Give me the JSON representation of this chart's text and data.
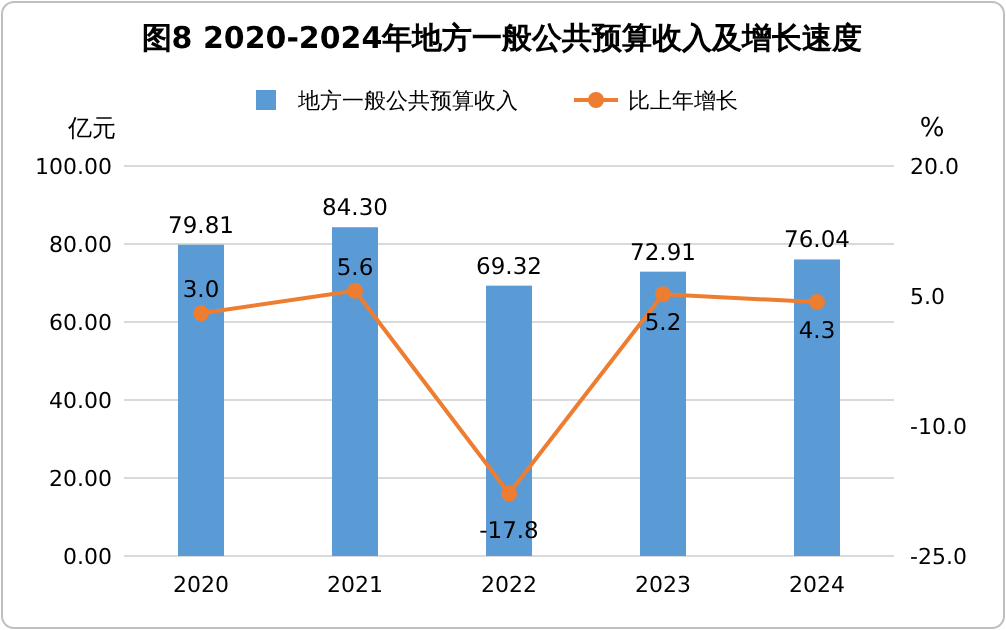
{
  "chart_data": {
    "type": "bar",
    "title": "图8  2020-2024年地方一般公共预算收入及增长速度",
    "ylabel": "亿元",
    "y2label": "%",
    "categories": [
      "2020",
      "2021",
      "2022",
      "2023",
      "2024"
    ],
    "series": [
      {
        "name": "地方一般公共预算收入",
        "color": "#5b9bd5",
        "values": [
          79.81,
          84.3,
          69.32,
          72.91,
          76.04
        ],
        "value_labels": [
          "79.81",
          "84.30",
          "69.32",
          "72.91",
          "76.04"
        ]
      },
      {
        "name": "比上年增长",
        "type": "line",
        "axis": "y2",
        "color": "#ed7d31",
        "marker": "circle",
        "values": [
          3.0,
          5.6,
          -17.8,
          5.2,
          4.3
        ],
        "value_labels": [
          "3.0",
          "5.6",
          "-17.8",
          "5.2",
          "4.3"
        ]
      }
    ],
    "ylim": [
      0,
      100
    ],
    "yticks": [
      {
        "value": 0,
        "label": "0.00"
      },
      {
        "value": 20,
        "label": "20.00"
      },
      {
        "value": 40,
        "label": "40.00"
      },
      {
        "value": 60,
        "label": "60.00"
      },
      {
        "value": 80,
        "label": "80.00"
      },
      {
        "value": 100,
        "label": "100.00"
      }
    ],
    "y2lim": [
      -25,
      20
    ],
    "y2ticks": [
      {
        "value": -25,
        "label": "-25.0"
      },
      {
        "value": -10,
        "label": "-10.0"
      },
      {
        "value": 5,
        "label": "5.0"
      },
      {
        "value": 20,
        "label": "20.0"
      }
    ],
    "grid": "y",
    "legend": "top"
  }
}
